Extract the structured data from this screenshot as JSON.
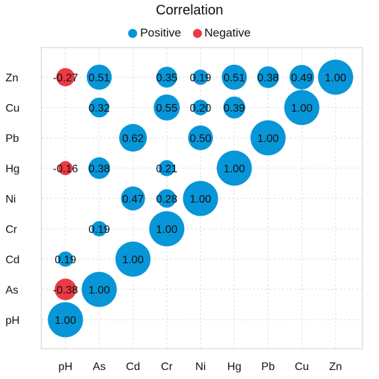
{
  "chart_data": {
    "type": "bubble-correlation",
    "title": "Correlation",
    "legend": [
      {
        "label": "Positive",
        "color": "#0796d8"
      },
      {
        "label": "Negative",
        "color": "#ec3a45"
      }
    ],
    "x_labels": [
      "pH",
      "As",
      "Cd",
      "Cr",
      "Ni",
      "Hg",
      "Pb",
      "Cu",
      "Zn"
    ],
    "y_labels": [
      "Zn",
      "Cu",
      "Pb",
      "Hg",
      "Ni",
      "Cr",
      "Cd",
      "As",
      "pH"
    ],
    "points": [
      {
        "x": "pH",
        "y": "Zn",
        "value": -0.27,
        "label": "-0.27"
      },
      {
        "x": "As",
        "y": "Zn",
        "value": 0.51,
        "label": "0.51"
      },
      {
        "x": "Cr",
        "y": "Zn",
        "value": 0.35,
        "label": "0.35"
      },
      {
        "x": "Ni",
        "y": "Zn",
        "value": 0.19,
        "label": "0.19"
      },
      {
        "x": "Hg",
        "y": "Zn",
        "value": 0.51,
        "label": "0.51"
      },
      {
        "x": "Pb",
        "y": "Zn",
        "value": 0.38,
        "label": "0.38"
      },
      {
        "x": "Cu",
        "y": "Zn",
        "value": 0.49,
        "label": "0.49"
      },
      {
        "x": "Zn",
        "y": "Zn",
        "value": 1.0,
        "label": "1.00"
      },
      {
        "x": "As",
        "y": "Cu",
        "value": 0.32,
        "label": "0.32"
      },
      {
        "x": "Cr",
        "y": "Cu",
        "value": 0.55,
        "label": "0.55"
      },
      {
        "x": "Ni",
        "y": "Cu",
        "value": 0.2,
        "label": "0.20"
      },
      {
        "x": "Hg",
        "y": "Cu",
        "value": 0.39,
        "label": "0.39"
      },
      {
        "x": "Cu",
        "y": "Cu",
        "value": 1.0,
        "label": "1.00"
      },
      {
        "x": "Cd",
        "y": "Pb",
        "value": 0.62,
        "label": "0.62"
      },
      {
        "x": "Ni",
        "y": "Pb",
        "value": 0.5,
        "label": "0.50"
      },
      {
        "x": "Pb",
        "y": "Pb",
        "value": 1.0,
        "label": "1.00"
      },
      {
        "x": "pH",
        "y": "Hg",
        "value": -0.16,
        "label": "-0.16"
      },
      {
        "x": "As",
        "y": "Hg",
        "value": 0.38,
        "label": "0.38"
      },
      {
        "x": "Cr",
        "y": "Hg",
        "value": 0.21,
        "label": "0.21"
      },
      {
        "x": "Hg",
        "y": "Hg",
        "value": 1.0,
        "label": "1.00"
      },
      {
        "x": "Cd",
        "y": "Ni",
        "value": 0.47,
        "label": "0.47"
      },
      {
        "x": "Cr",
        "y": "Ni",
        "value": 0.28,
        "label": "0.28"
      },
      {
        "x": "Ni",
        "y": "Ni",
        "value": 1.0,
        "label": "1.00"
      },
      {
        "x": "As",
        "y": "Cr",
        "value": 0.19,
        "label": "0.19"
      },
      {
        "x": "Cr",
        "y": "Cr",
        "value": 1.0,
        "label": "1.00"
      },
      {
        "x": "pH",
        "y": "Cd",
        "value": 0.19,
        "label": "0.19"
      },
      {
        "x": "Cd",
        "y": "Cd",
        "value": 1.0,
        "label": "1.00"
      },
      {
        "x": "pH",
        "y": "As",
        "value": -0.38,
        "label": "-0.38"
      },
      {
        "x": "As",
        "y": "As",
        "value": 1.0,
        "label": "1.00"
      },
      {
        "x": "pH",
        "y": "pH",
        "value": 1.0,
        "label": "1.00"
      }
    ]
  }
}
